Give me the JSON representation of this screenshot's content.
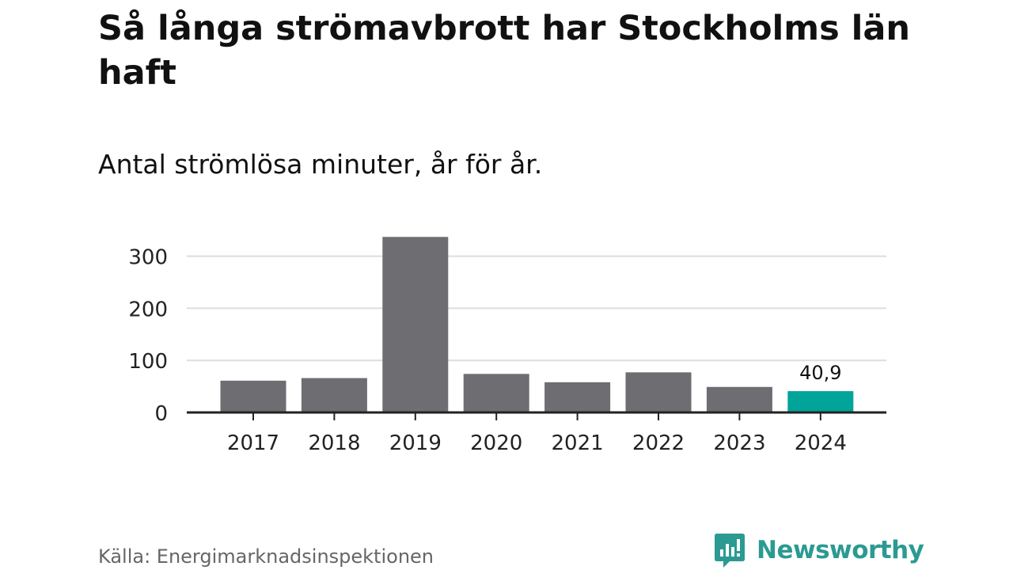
{
  "title": "Så långa strömavbrott har Stockholms län haft",
  "subtitle": "Antal strömlösa minuter, år för år.",
  "source": "Källa: Energimarknadsinspektionen",
  "brand": {
    "name": "Newsworthy",
    "logo_icon": "chart-bubble-icon",
    "color": "#2b9a92"
  },
  "colors": {
    "bar": "#6e6d72",
    "highlight": "#00a499",
    "grid": "#dddddd",
    "axis": "#222222"
  },
  "chart_data": {
    "type": "bar",
    "title": "Så långa strömavbrott har Stockholms län haft",
    "subtitle": "Antal strömlösa minuter, år för år.",
    "xlabel": "",
    "ylabel": "",
    "categories": [
      "2017",
      "2018",
      "2019",
      "2020",
      "2021",
      "2022",
      "2023",
      "2024"
    ],
    "values": [
      61,
      66,
      337,
      74,
      58,
      77,
      49,
      40.9
    ],
    "highlight_index": 7,
    "data_labels": [
      {
        "index": 7,
        "text": "40,9"
      }
    ],
    "ylim": [
      0,
      340
    ],
    "yticks": [
      0,
      100,
      200,
      300
    ],
    "ytick_labels": [
      "0",
      "100",
      "200",
      "300"
    ],
    "grid": true
  }
}
